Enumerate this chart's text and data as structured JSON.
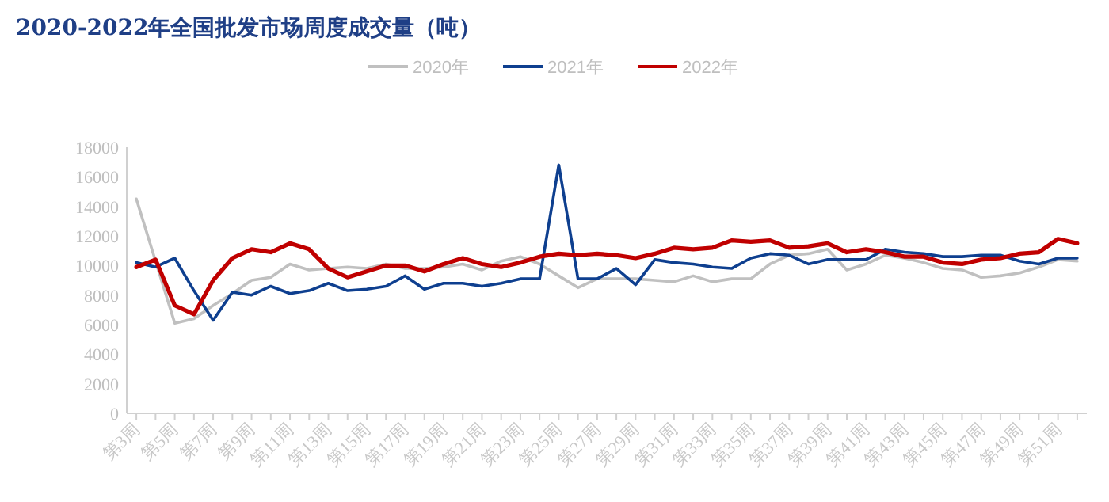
{
  "chart_data": {
    "type": "line",
    "title": "2020-2022年全国批发市场周度成交量（吨）",
    "categories": [
      "第3周",
      null,
      "第5周",
      null,
      "第7周",
      null,
      "第9周",
      null,
      "第11周",
      null,
      "第13周",
      null,
      "第15周",
      null,
      "第17周",
      null,
      "第19周",
      null,
      "第21周",
      null,
      "第23周",
      null,
      "第25周",
      null,
      "第27周",
      null,
      "第29周",
      null,
      "第31周",
      null,
      "第33周",
      null,
      "第35周",
      null,
      "第37周",
      null,
      "第39周",
      null,
      "第41周",
      null,
      "第43周",
      null,
      "第45周",
      null,
      "第47周",
      null,
      "第49周",
      null,
      "第51周",
      null
    ],
    "series": [
      {
        "name": "2020年",
        "color": "#c0c0c0",
        "values": [
          14500,
          10300,
          6100,
          6400,
          7300,
          8100,
          9000,
          9200,
          10100,
          9700,
          9800,
          9900,
          9800,
          10100,
          9800,
          9800,
          9900,
          10100,
          9700,
          10300,
          10600,
          10100,
          9300,
          8500,
          9100,
          9100,
          9100,
          9000,
          8900,
          9300,
          8900,
          9100,
          9100,
          10100,
          10700,
          10800,
          11100,
          9700,
          10100,
          10700,
          10500,
          10200,
          9800,
          9700,
          9200,
          9300,
          9500,
          9900,
          10400,
          10300
        ]
      },
      {
        "name": "2021年",
        "color": "#0e3f8f",
        "values": [
          10200,
          9900,
          10500,
          8300,
          6300,
          8200,
          8000,
          8600,
          8100,
          8300,
          8800,
          8300,
          8400,
          8600,
          9300,
          8400,
          8800,
          8800,
          8600,
          8800,
          9100,
          9100,
          16800,
          9100,
          9100,
          9800,
          8700,
          10400,
          10200,
          10100,
          9900,
          9800,
          10500,
          10800,
          10700,
          10100,
          10400,
          10400,
          10400,
          11100,
          10900,
          10800,
          10600,
          10600,
          10700,
          10700,
          10300,
          10100,
          10500,
          10500
        ]
      },
      {
        "name": "2022年",
        "color": "#c00000",
        "values": [
          9900,
          10400,
          7300,
          6700,
          9000,
          10500,
          11100,
          10900,
          11500,
          11100,
          9800,
          9200,
          9600,
          10000,
          10000,
          9600,
          10100,
          10500,
          10100,
          9900,
          10200,
          10600,
          10800,
          10700,
          10800,
          10700,
          10500,
          10800,
          11200,
          11100,
          11200,
          11700,
          11600,
          11700,
          11200,
          11300,
          11500,
          10900,
          11100,
          10900,
          10600,
          10600,
          10200,
          10100,
          10400,
          10500,
          10800,
          10900,
          11800,
          11500
        ]
      }
    ],
    "ylim": [
      0,
      18000
    ],
    "yticks": [
      0,
      2000,
      4000,
      6000,
      8000,
      10000,
      12000,
      14000,
      16000,
      18000
    ],
    "legend": "top"
  }
}
